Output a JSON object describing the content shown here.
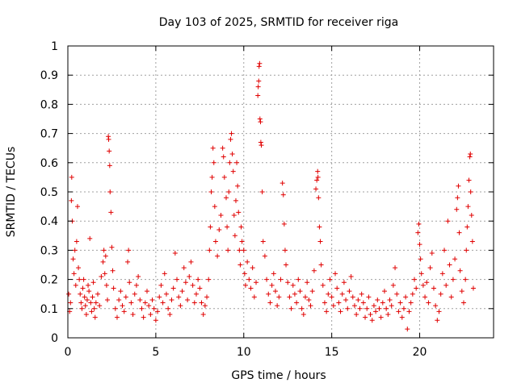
{
  "chart_data": {
    "type": "scatter",
    "title": "Day 103 of 2025, SRMTID for receiver riga",
    "xlabel": "GPS time / hours",
    "ylabel": "SRMTID / TECUs",
    "xlim": [
      0,
      24.2
    ],
    "ylim": [
      0,
      1
    ],
    "x_ticks": [
      0,
      5,
      10,
      15,
      20
    ],
    "x_tick_labels": [
      "0",
      "5",
      "10",
      "15",
      "20"
    ],
    "y_ticks": [
      0,
      0.1,
      0.2,
      0.3,
      0.4,
      0.5,
      0.6,
      0.7,
      0.8,
      0.9,
      1
    ],
    "y_tick_labels": [
      "0",
      "0.1",
      "0.2",
      "0.3",
      "0.4",
      "0.5",
      "0.6",
      "0.7",
      "0.8",
      "0.9",
      "1"
    ],
    "grid": true,
    "marker": "+",
    "color": "#e00000",
    "series": [
      {
        "name": "SRMTID",
        "points": [
          [
            0.05,
            0.15
          ],
          [
            0.1,
            0.09
          ],
          [
            0.15,
            0.12
          ],
          [
            0.2,
            0.47
          ],
          [
            0.22,
            0.55
          ],
          [
            0.25,
            0.4
          ],
          [
            0.3,
            0.27
          ],
          [
            0.35,
            0.22
          ],
          [
            0.4,
            0.3
          ],
          [
            0.45,
            0.18
          ],
          [
            0.5,
            0.33
          ],
          [
            0.55,
            0.45
          ],
          [
            0.6,
            0.24
          ],
          [
            0.65,
            0.2
          ],
          [
            0.7,
            0.15
          ],
          [
            0.75,
            0.12
          ],
          [
            0.8,
            0.1
          ],
          [
            0.85,
            0.17
          ],
          [
            0.9,
            0.2
          ],
          [
            0.95,
            0.14
          ],
          [
            1.0,
            0.11
          ],
          [
            1.05,
            0.08
          ],
          [
            1.1,
            0.13
          ],
          [
            1.15,
            0.18
          ],
          [
            1.2,
            0.16
          ],
          [
            1.25,
            0.34
          ],
          [
            1.3,
            0.12
          ],
          [
            1.35,
            0.09
          ],
          [
            1.4,
            0.14
          ],
          [
            1.45,
            0.19
          ],
          [
            1.5,
            0.1
          ],
          [
            1.55,
            0.07
          ],
          [
            1.6,
            0.12
          ],
          [
            1.7,
            0.15
          ],
          [
            1.8,
            0.11
          ],
          [
            1.9,
            0.21
          ],
          [
            2.0,
            0.26
          ],
          [
            2.05,
            0.3
          ],
          [
            2.1,
            0.22
          ],
          [
            2.15,
            0.28
          ],
          [
            2.2,
            0.18
          ],
          [
            2.25,
            0.13
          ],
          [
            2.3,
            0.69
          ],
          [
            2.32,
            0.68
          ],
          [
            2.35,
            0.64
          ],
          [
            2.38,
            0.59
          ],
          [
            2.4,
            0.5
          ],
          [
            2.45,
            0.43
          ],
          [
            2.5,
            0.31
          ],
          [
            2.55,
            0.23
          ],
          [
            2.6,
            0.17
          ],
          [
            2.7,
            0.1
          ],
          [
            2.8,
            0.07
          ],
          [
            2.9,
            0.13
          ],
          [
            3.0,
            0.16
          ],
          [
            3.1,
            0.11
          ],
          [
            3.2,
            0.09
          ],
          [
            3.3,
            0.14
          ],
          [
            3.4,
            0.26
          ],
          [
            3.45,
            0.3
          ],
          [
            3.5,
            0.19
          ],
          [
            3.6,
            0.12
          ],
          [
            3.7,
            0.08
          ],
          [
            3.8,
            0.15
          ],
          [
            3.9,
            0.18
          ],
          [
            4.0,
            0.21
          ],
          [
            4.1,
            0.13
          ],
          [
            4.2,
            0.1
          ],
          [
            4.3,
            0.07
          ],
          [
            4.4,
            0.12
          ],
          [
            4.5,
            0.16
          ],
          [
            4.6,
            0.11
          ],
          [
            4.7,
            0.08
          ],
          [
            4.8,
            0.13
          ],
          [
            4.9,
            0.1
          ],
          [
            5.0,
            0.06
          ],
          [
            5.1,
            0.09
          ],
          [
            5.2,
            0.14
          ],
          [
            5.3,
            0.18
          ],
          [
            5.4,
            0.12
          ],
          [
            5.5,
            0.22
          ],
          [
            5.6,
            0.15
          ],
          [
            5.7,
            0.1
          ],
          [
            5.8,
            0.08
          ],
          [
            5.9,
            0.13
          ],
          [
            6.0,
            0.17
          ],
          [
            6.1,
            0.29
          ],
          [
            6.2,
            0.2
          ],
          [
            6.3,
            0.14
          ],
          [
            6.4,
            0.11
          ],
          [
            6.5,
            0.16
          ],
          [
            6.6,
            0.24
          ],
          [
            6.7,
            0.19
          ],
          [
            6.8,
            0.13
          ],
          [
            6.9,
            0.21
          ],
          [
            7.0,
            0.26
          ],
          [
            7.1,
            0.18
          ],
          [
            7.2,
            0.12
          ],
          [
            7.3,
            0.15
          ],
          [
            7.4,
            0.2
          ],
          [
            7.5,
            0.17
          ],
          [
            7.6,
            0.12
          ],
          [
            7.7,
            0.08
          ],
          [
            7.8,
            0.11
          ],
          [
            7.9,
            0.14
          ],
          [
            8.0,
            0.2
          ],
          [
            8.05,
            0.3
          ],
          [
            8.1,
            0.38
          ],
          [
            8.15,
            0.5
          ],
          [
            8.2,
            0.55
          ],
          [
            8.25,
            0.65
          ],
          [
            8.3,
            0.6
          ],
          [
            8.35,
            0.45
          ],
          [
            8.4,
            0.33
          ],
          [
            8.5,
            0.28
          ],
          [
            8.6,
            0.37
          ],
          [
            8.7,
            0.42
          ],
          [
            8.8,
            0.65
          ],
          [
            8.85,
            0.62
          ],
          [
            8.9,
            0.55
          ],
          [
            9.0,
            0.48
          ],
          [
            9.05,
            0.38
          ],
          [
            9.1,
            0.3
          ],
          [
            9.15,
            0.5
          ],
          [
            9.2,
            0.6
          ],
          [
            9.25,
            0.68
          ],
          [
            9.3,
            0.7
          ],
          [
            9.35,
            0.63
          ],
          [
            9.4,
            0.57
          ],
          [
            9.45,
            0.42
          ],
          [
            9.5,
            0.35
          ],
          [
            9.55,
            0.47
          ],
          [
            9.6,
            0.6
          ],
          [
            9.65,
            0.52
          ],
          [
            9.7,
            0.43
          ],
          [
            9.75,
            0.3
          ],
          [
            9.8,
            0.25
          ],
          [
            9.85,
            0.38
          ],
          [
            9.9,
            0.33
          ],
          [
            10.0,
            0.3
          ],
          [
            10.05,
            0.22
          ],
          [
            10.1,
            0.18
          ],
          [
            10.2,
            0.26
          ],
          [
            10.3,
            0.2
          ],
          [
            10.4,
            0.17
          ],
          [
            10.5,
            0.24
          ],
          [
            10.6,
            0.14
          ],
          [
            10.7,
            0.19
          ],
          [
            10.8,
            0.83
          ],
          [
            10.82,
            0.86
          ],
          [
            10.85,
            0.88
          ],
          [
            10.87,
            0.93
          ],
          [
            10.9,
            0.94
          ],
          [
            10.92,
            0.75
          ],
          [
            10.95,
            0.74
          ],
          [
            10.97,
            0.67
          ],
          [
            11.0,
            0.66
          ],
          [
            11.05,
            0.5
          ],
          [
            11.1,
            0.33
          ],
          [
            11.2,
            0.28
          ],
          [
            11.3,
            0.2
          ],
          [
            11.4,
            0.15
          ],
          [
            11.5,
            0.12
          ],
          [
            11.6,
            0.18
          ],
          [
            11.7,
            0.22
          ],
          [
            11.8,
            0.16
          ],
          [
            11.9,
            0.11
          ],
          [
            12.0,
            0.14
          ],
          [
            12.1,
            0.2
          ],
          [
            12.2,
            0.53
          ],
          [
            12.25,
            0.49
          ],
          [
            12.3,
            0.39
          ],
          [
            12.35,
            0.3
          ],
          [
            12.4,
            0.25
          ],
          [
            12.5,
            0.19
          ],
          [
            12.6,
            0.14
          ],
          [
            12.7,
            0.1
          ],
          [
            12.8,
            0.18
          ],
          [
            12.9,
            0.15
          ],
          [
            13.0,
            0.12
          ],
          [
            13.1,
            0.2
          ],
          [
            13.2,
            0.16
          ],
          [
            13.3,
            0.1
          ],
          [
            13.4,
            0.08
          ],
          [
            13.5,
            0.14
          ],
          [
            13.6,
            0.19
          ],
          [
            13.7,
            0.13
          ],
          [
            13.8,
            0.11
          ],
          [
            13.9,
            0.16
          ],
          [
            14.0,
            0.23
          ],
          [
            14.1,
            0.51
          ],
          [
            14.15,
            0.54
          ],
          [
            14.2,
            0.57
          ],
          [
            14.22,
            0.55
          ],
          [
            14.25,
            0.48
          ],
          [
            14.3,
            0.38
          ],
          [
            14.35,
            0.33
          ],
          [
            14.4,
            0.25
          ],
          [
            14.5,
            0.18
          ],
          [
            14.6,
            0.12
          ],
          [
            14.7,
            0.09
          ],
          [
            14.8,
            0.15
          ],
          [
            14.9,
            0.2
          ],
          [
            15.0,
            0.14
          ],
          [
            15.1,
            0.11
          ],
          [
            15.2,
            0.22
          ],
          [
            15.3,
            0.17
          ],
          [
            15.4,
            0.12
          ],
          [
            15.5,
            0.09
          ],
          [
            15.6,
            0.15
          ],
          [
            15.7,
            0.19
          ],
          [
            15.8,
            0.13
          ],
          [
            15.9,
            0.1
          ],
          [
            16.0,
            0.16
          ],
          [
            16.1,
            0.21
          ],
          [
            16.2,
            0.14
          ],
          [
            16.3,
            0.11
          ],
          [
            16.4,
            0.08
          ],
          [
            16.5,
            0.13
          ],
          [
            16.6,
            0.1
          ],
          [
            16.7,
            0.15
          ],
          [
            16.8,
            0.12
          ],
          [
            16.9,
            0.07
          ],
          [
            17.0,
            0.1
          ],
          [
            17.1,
            0.14
          ],
          [
            17.2,
            0.08
          ],
          [
            17.3,
            0.06
          ],
          [
            17.4,
            0.11
          ],
          [
            17.5,
            0.09
          ],
          [
            17.6,
            0.13
          ],
          [
            17.7,
            0.1
          ],
          [
            17.8,
            0.07
          ],
          [
            17.9,
            0.12
          ],
          [
            18.0,
            0.16
          ],
          [
            18.1,
            0.1
          ],
          [
            18.2,
            0.08
          ],
          [
            18.3,
            0.13
          ],
          [
            18.4,
            0.11
          ],
          [
            18.5,
            0.18
          ],
          [
            18.6,
            0.24
          ],
          [
            18.7,
            0.15
          ],
          [
            18.8,
            0.09
          ],
          [
            18.9,
            0.12
          ],
          [
            19.0,
            0.07
          ],
          [
            19.1,
            0.1
          ],
          [
            19.2,
            0.14
          ],
          [
            19.3,
            0.03
          ],
          [
            19.4,
            0.09
          ],
          [
            19.5,
            0.12
          ],
          [
            19.6,
            0.15
          ],
          [
            19.7,
            0.2
          ],
          [
            19.8,
            0.17
          ],
          [
            19.9,
            0.36
          ],
          [
            19.95,
            0.39
          ],
          [
            20.0,
            0.32
          ],
          [
            20.05,
            0.27
          ],
          [
            20.1,
            0.22
          ],
          [
            20.2,
            0.18
          ],
          [
            20.3,
            0.14
          ],
          [
            20.4,
            0.19
          ],
          [
            20.5,
            0.12
          ],
          [
            20.6,
            0.24
          ],
          [
            20.7,
            0.29
          ],
          [
            20.8,
            0.17
          ],
          [
            20.9,
            0.11
          ],
          [
            21.0,
            0.06
          ],
          [
            21.1,
            0.09
          ],
          [
            21.2,
            0.15
          ],
          [
            21.3,
            0.22
          ],
          [
            21.4,
            0.3
          ],
          [
            21.5,
            0.18
          ],
          [
            21.6,
            0.4
          ],
          [
            21.7,
            0.25
          ],
          [
            21.8,
            0.14
          ],
          [
            21.9,
            0.2
          ],
          [
            22.0,
            0.27
          ],
          [
            22.1,
            0.44
          ],
          [
            22.15,
            0.48
          ],
          [
            22.2,
            0.52
          ],
          [
            22.25,
            0.36
          ],
          [
            22.3,
            0.23
          ],
          [
            22.4,
            0.16
          ],
          [
            22.5,
            0.12
          ],
          [
            22.6,
            0.2
          ],
          [
            22.65,
            0.3
          ],
          [
            22.7,
            0.38
          ],
          [
            22.75,
            0.45
          ],
          [
            22.8,
            0.54
          ],
          [
            22.85,
            0.62
          ],
          [
            22.88,
            0.63
          ],
          [
            22.9,
            0.5
          ],
          [
            22.95,
            0.42
          ],
          [
            23.0,
            0.33
          ],
          [
            23.05,
            0.17
          ]
        ]
      }
    ]
  }
}
